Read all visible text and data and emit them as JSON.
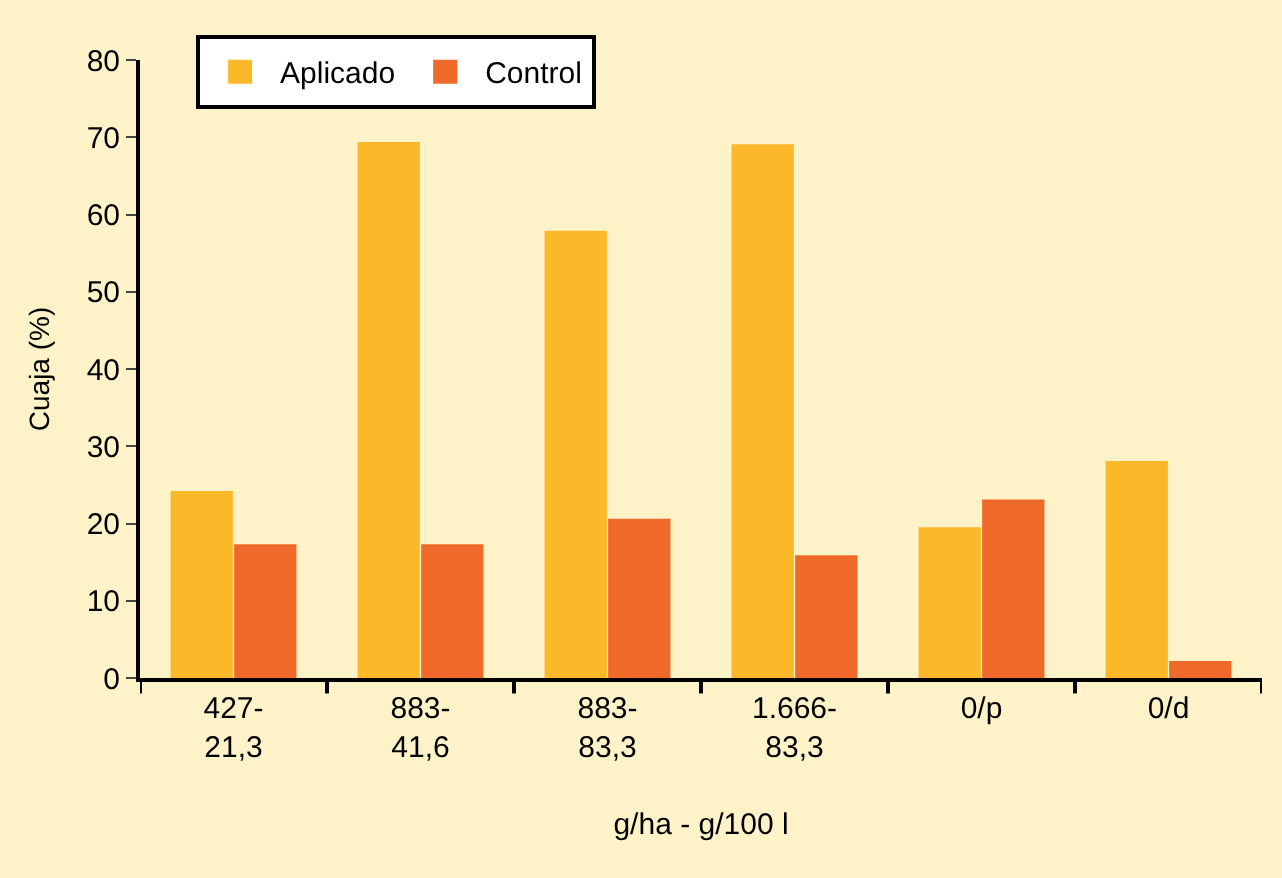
{
  "chart_data": {
    "type": "bar",
    "xlabel": "g/ha - g/100 l",
    "ylabel": "Cuaja (%)",
    "categories": [
      "427-\n21,3",
      "883-\n41,6",
      "883-\n83,3",
      "1.666-\n83,3",
      "0/p",
      "0/d"
    ],
    "series": [
      {
        "name": "Aplicado",
        "color": "#fbb829",
        "values": [
          24.2,
          69.4,
          57.9,
          69.1,
          19.5,
          28.1
        ]
      },
      {
        "name": "Control",
        "color": "#ef6a2a",
        "values": [
          17.3,
          17.3,
          20.6,
          15.9,
          23.1,
          2.2
        ]
      }
    ],
    "ylim": [
      0,
      80
    ],
    "yticks": [
      0,
      10,
      20,
      30,
      40,
      50,
      60,
      70,
      80
    ],
    "grid": false,
    "legend": "top"
  }
}
